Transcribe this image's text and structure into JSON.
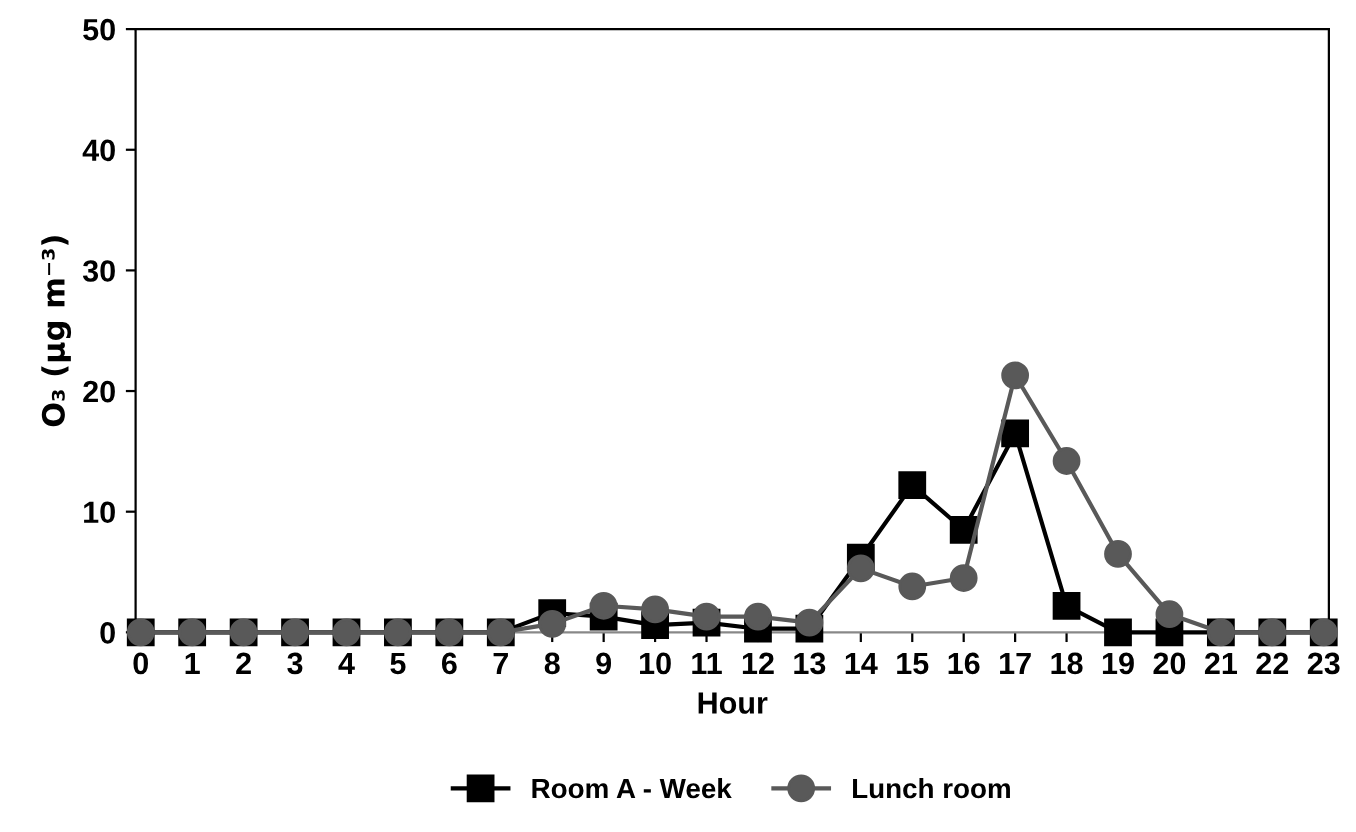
{
  "chart_data": {
    "type": "line",
    "xlabel": "Hour",
    "ylabel": "O₃ (µg m⁻³)",
    "categories": [
      "0",
      "1",
      "2",
      "3",
      "4",
      "5",
      "6",
      "7",
      "8",
      "9",
      "10",
      "11",
      "12",
      "13",
      "14",
      "15",
      "16",
      "17",
      "18",
      "19",
      "20",
      "21",
      "22",
      "23"
    ],
    "ylim": [
      0,
      50
    ],
    "yticks": [
      0,
      10,
      20,
      30,
      40,
      50
    ],
    "grid": false,
    "legend": "bottom",
    "line_style": "solid",
    "series": [
      {
        "name": "Room A - Week",
        "color": "#000000",
        "marker": "square",
        "values": [
          0,
          0,
          0,
          0,
          0,
          0,
          0,
          0,
          1.6,
          1.3,
          0.6,
          0.8,
          0.3,
          0.3,
          6.2,
          12.2,
          8.5,
          16.5,
          2.2,
          0,
          0,
          0,
          0,
          0
        ]
      },
      {
        "name": "Lunch room",
        "color": "#595959",
        "marker": "circle",
        "values": [
          0,
          0,
          0,
          0,
          0,
          0,
          0,
          0,
          0.7,
          2.2,
          1.9,
          1.3,
          1.3,
          0.8,
          5.3,
          3.8,
          4.5,
          21.3,
          14.2,
          6.5,
          1.5,
          0,
          0,
          0
        ]
      }
    ]
  }
}
